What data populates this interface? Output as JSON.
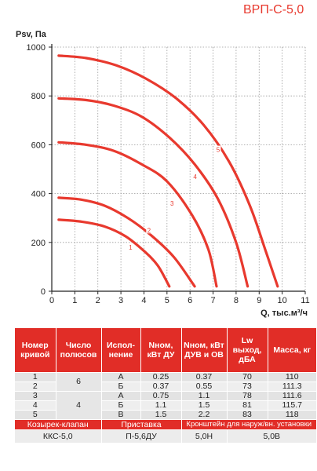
{
  "model": "ВРП-С-5,0",
  "chart_data": {
    "type": "line",
    "ylabel": "Psv, Па",
    "xlabel": "Q, тыс.м³/ч",
    "xlim": [
      0,
      11
    ],
    "ylim": [
      0,
      1000
    ],
    "xticks": [
      "0",
      "1",
      "2",
      "3",
      "4",
      "5",
      "6",
      "7",
      "8",
      "9",
      "10",
      "11"
    ],
    "yticks": [
      "0",
      "200",
      "400",
      "600",
      "800",
      "1000"
    ],
    "grid": true,
    "color": "#e8392e",
    "series": [
      {
        "name": "1",
        "label_at": [
          3.4,
          180
        ],
        "points": [
          [
            0.3,
            293
          ],
          [
            1.3,
            285
          ],
          [
            2.3,
            265
          ],
          [
            3.2,
            225
          ],
          [
            4.0,
            165
          ],
          [
            4.6,
            105
          ],
          [
            5.1,
            20
          ]
        ]
      },
      {
        "name": "2",
        "label_at": [
          4.2,
          250
        ],
        "points": [
          [
            0.3,
            383
          ],
          [
            1.3,
            375
          ],
          [
            2.3,
            350
          ],
          [
            3.3,
            300
          ],
          [
            4.3,
            230
          ],
          [
            5.3,
            140
          ],
          [
            6.2,
            20
          ]
        ]
      },
      {
        "name": "3",
        "label_at": [
          5.2,
          360
        ],
        "points": [
          [
            0.3,
            610
          ],
          [
            1.5,
            600
          ],
          [
            2.7,
            575
          ],
          [
            3.9,
            520
          ],
          [
            5.0,
            450
          ],
          [
            6.1,
            310
          ],
          [
            6.8,
            170
          ],
          [
            7.15,
            20
          ]
        ]
      },
      {
        "name": "4",
        "label_at": [
          6.2,
          470
        ],
        "points": [
          [
            0.3,
            790
          ],
          [
            1.5,
            783
          ],
          [
            2.7,
            760
          ],
          [
            3.9,
            715
          ],
          [
            5.1,
            630
          ],
          [
            6.2,
            520
          ],
          [
            7.2,
            380
          ],
          [
            8.0,
            200
          ],
          [
            8.5,
            20
          ]
        ]
      },
      {
        "name": "5",
        "label_at": [
          7.2,
          580
        ],
        "points": [
          [
            0.3,
            965
          ],
          [
            1.5,
            955
          ],
          [
            2.8,
            925
          ],
          [
            4.1,
            870
          ],
          [
            5.4,
            790
          ],
          [
            6.6,
            680
          ],
          [
            7.7,
            530
          ],
          [
            8.6,
            350
          ],
          [
            9.3,
            160
          ],
          [
            9.8,
            20
          ]
        ]
      }
    ]
  },
  "table": {
    "headers": [
      "Номер кривой",
      "Число полюсов",
      "Испол-нение",
      "Nном, кВт ДУ",
      "Nном, кВт ДУВ и ОВ",
      "Lw выход, дБА",
      "Масса, кг"
    ],
    "rows": [
      [
        "1",
        "",
        "А",
        "0.25",
        "0.37",
        "70",
        "110"
      ],
      [
        "2",
        "",
        "Б",
        "0.37",
        "0.55",
        "73",
        "111.3"
      ],
      [
        "3",
        "",
        "А",
        "0.75",
        "1.1",
        "78",
        "111.6"
      ],
      [
        "4",
        "",
        "Б",
        "1.1",
        "1.5",
        "81",
        "115.7"
      ],
      [
        "5",
        "",
        "В",
        "1.5",
        "2.2",
        "83",
        "118"
      ]
    ],
    "poles_top": "6",
    "poles_bottom": "4",
    "accessories": {
      "headers": [
        "Козырек-клапан",
        "Приставка",
        "Кронштейн для наруж/вн. установки"
      ],
      "values": [
        "ККС-5,0",
        "П-5,6ДУ",
        "5,0Н",
        "5,0В"
      ]
    }
  }
}
